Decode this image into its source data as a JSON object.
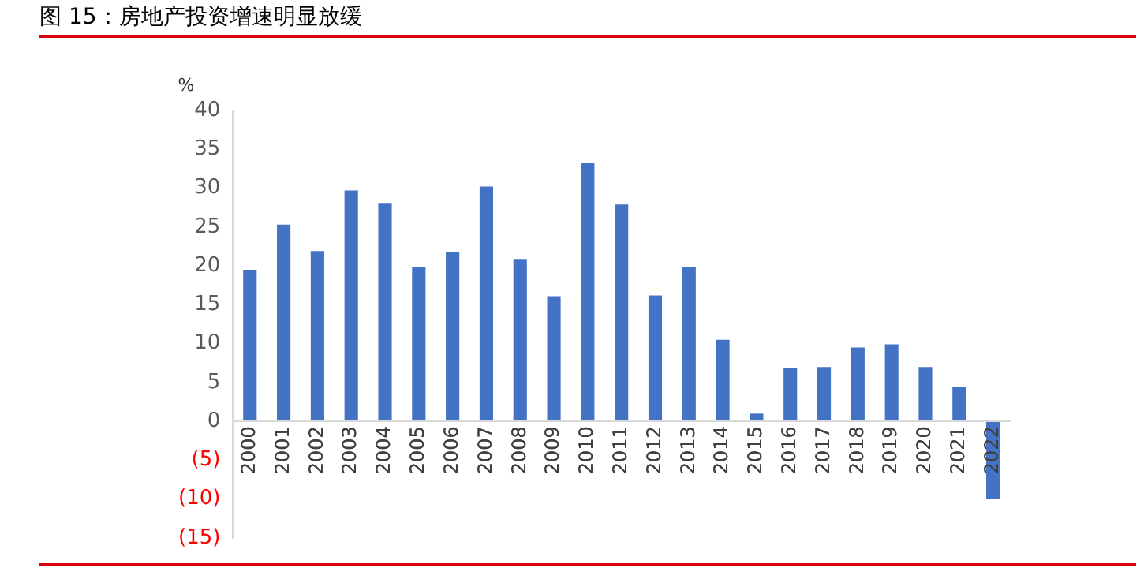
{
  "chart_data": {
    "type": "bar",
    "title": "图 15：房地产投资增速明显放缓",
    "ylabel": "%",
    "categories": [
      "2000",
      "2001",
      "2002",
      "2003",
      "2004",
      "2005",
      "2006",
      "2007",
      "2008",
      "2009",
      "2010",
      "2011",
      "2012",
      "2013",
      "2014",
      "2015",
      "2016",
      "2017",
      "2018",
      "2019",
      "2020",
      "2021",
      "2022"
    ],
    "values": [
      19.5,
      25.3,
      21.9,
      29.7,
      28.1,
      19.8,
      21.8,
      30.2,
      20.9,
      16.1,
      33.2,
      27.9,
      16.2,
      19.8,
      10.5,
      1.0,
      6.9,
      7.0,
      9.5,
      9.9,
      7.0,
      4.4,
      -10
    ],
    "color": "#4472c4",
    "ylim": [
      -15,
      40
    ],
    "yticks": [
      {
        "value": -15,
        "label": "(15)"
      },
      {
        "value": -10,
        "label": "(10)"
      },
      {
        "value": -5,
        "label": "(5)"
      },
      0,
      5,
      10,
      15,
      20,
      25,
      30,
      35,
      40
    ],
    "grid": false,
    "legend": false
  }
}
